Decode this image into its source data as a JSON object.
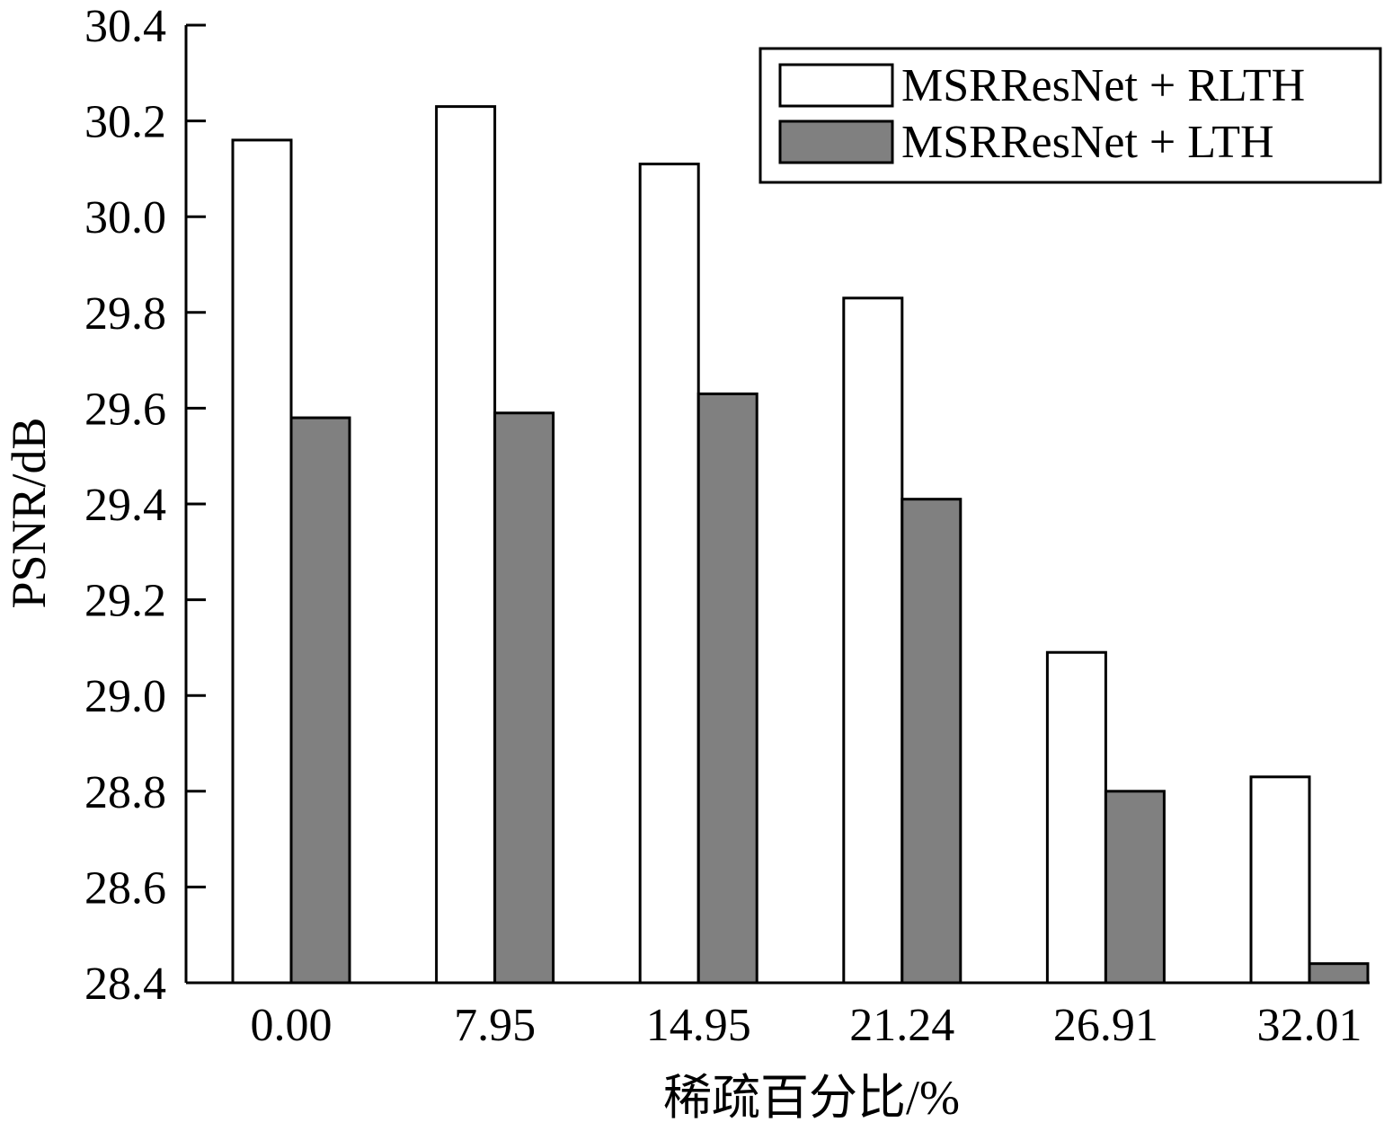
{
  "chart_data": {
    "type": "bar",
    "categories": [
      "0.00",
      "7.95",
      "14.95",
      "21.24",
      "26.91",
      "32.01"
    ],
    "series": [
      {
        "name": "MSRResNet + RLTH",
        "values": [
          30.16,
          30.23,
          30.11,
          29.83,
          29.09,
          28.83
        ],
        "color": "#ffffff"
      },
      {
        "name": "MSRResNet + LTH",
        "values": [
          29.58,
          29.59,
          29.63,
          29.41,
          28.8,
          28.44
        ],
        "color": "#808080"
      }
    ],
    "xlabel": "稀疏百分比/%",
    "ylabel": "PSNR/dB",
    "ylim": [
      28.4,
      30.4
    ],
    "yticks": [
      "28.4",
      "28.6",
      "28.8",
      "29.0",
      "29.2",
      "29.4",
      "29.6",
      "29.8",
      "30.0",
      "30.2",
      "30.4"
    ],
    "grid": false,
    "legend_position": "top-right"
  }
}
